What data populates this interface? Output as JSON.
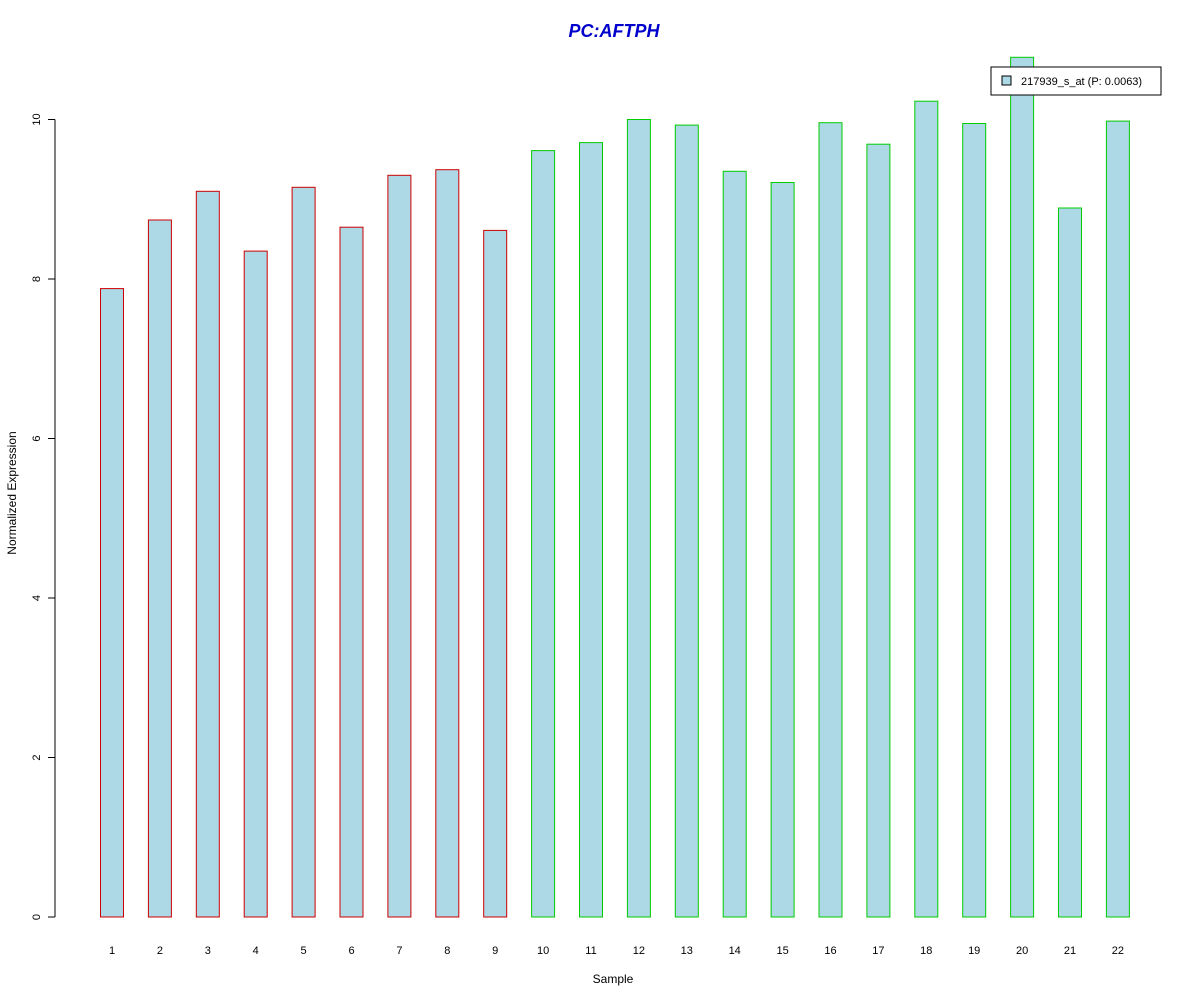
{
  "chart_data": {
    "type": "bar",
    "title": "PC:AFTPH",
    "title_color": "#0000CC",
    "xlabel": "Sample",
    "ylabel": "Normalized Expression",
    "ylim": [
      0,
      10.9
    ],
    "y_ticks": [
      0,
      2,
      4,
      6,
      8,
      10
    ],
    "categories": [
      "1",
      "2",
      "3",
      "4",
      "5",
      "6",
      "7",
      "8",
      "9",
      "10",
      "11",
      "12",
      "13",
      "14",
      "15",
      "16",
      "17",
      "18",
      "19",
      "20",
      "21",
      "22"
    ],
    "series": [
      {
        "name": "217939_s_at (P: 0.0063)",
        "values": [
          7.88,
          8.74,
          9.1,
          8.35,
          9.15,
          8.65,
          9.3,
          9.37,
          8.61,
          9.61,
          9.71,
          10.0,
          9.93,
          9.35,
          9.21,
          9.96,
          9.69,
          10.23,
          9.95,
          10.78,
          8.89,
          9.98
        ],
        "fill": "#ADD8E6"
      }
    ],
    "bar_border_colors": [
      "#CC0000",
      "#CC0000",
      "#CC0000",
      "#CC0000",
      "#CC0000",
      "#CC0000",
      "#CC0000",
      "#CC0000",
      "#CC0000",
      "#00CC00",
      "#00CC00",
      "#00CC00",
      "#00CC00",
      "#00CC00",
      "#00CC00",
      "#00CC00",
      "#00CC00",
      "#00CC00",
      "#00CC00",
      "#00CC00",
      "#00CC00",
      "#00CC00"
    ],
    "legend": {
      "label": "217939_s_at (P: 0.0063)",
      "position": "top-right"
    },
    "grid": false
  }
}
